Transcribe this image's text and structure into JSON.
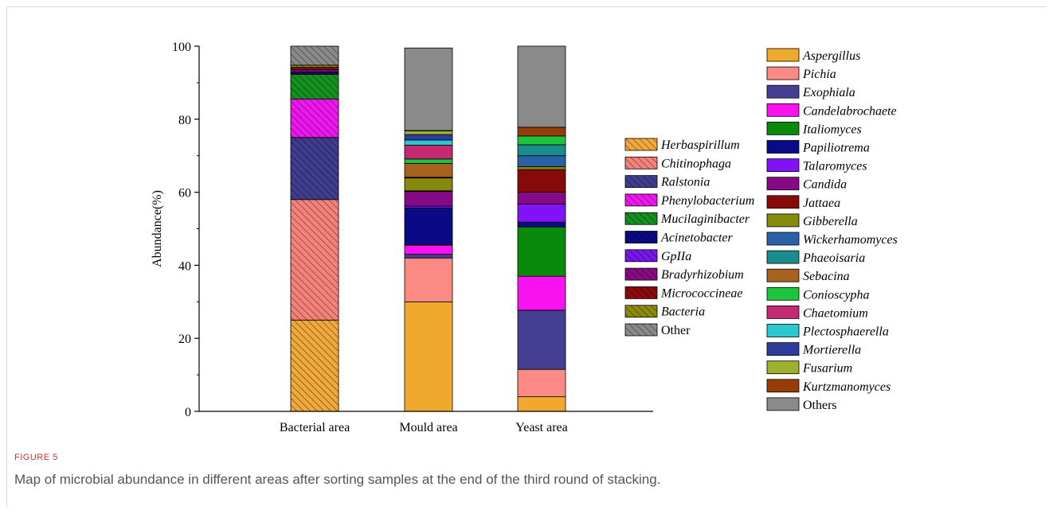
{
  "figure": {
    "label": "FIGURE 5",
    "caption": "Map of microbial abundance in different areas after sorting samples at the end of the third round of stacking."
  },
  "chart_data": {
    "type": "bar",
    "stacked": true,
    "ylabel": "Abundance(%)",
    "ylim": [
      0,
      100
    ],
    "yticks": [
      0,
      20,
      40,
      60,
      80,
      100
    ],
    "categories": [
      "Bacterial area",
      "Mould area",
      "Yeast area"
    ],
    "bars": [
      {
        "category": "Bacterial area",
        "legend_group": "bacteria",
        "segments": [
          {
            "name": "Herbaspirillum",
            "value": 25.0
          },
          {
            "name": "Chitinophaga",
            "value": 33.0
          },
          {
            "name": "Ralstonia",
            "value": 17.0
          },
          {
            "name": "Phenylobacterium",
            "value": 10.5
          },
          {
            "name": "Mucilaginibacter",
            "value": 6.8
          },
          {
            "name": "Acinetobacter",
            "value": 0.4
          },
          {
            "name": "GpIIa",
            "value": 0.3
          },
          {
            "name": "Bradyrhizobium",
            "value": 0.6
          },
          {
            "name": "Micrococcineae",
            "value": 0.6
          },
          {
            "name": "Bacteria",
            "value": 0.6
          },
          {
            "name": "Other",
            "value": 5.2
          }
        ]
      },
      {
        "category": "Mould area",
        "legend_group": "fungi",
        "segments": [
          {
            "name": "Aspergillus",
            "value": 30.0
          },
          {
            "name": "Pichia",
            "value": 12.0
          },
          {
            "name": "Exophiala",
            "value": 1.0
          },
          {
            "name": "Candelabrochaete",
            "value": 2.5
          },
          {
            "name": "Italiomyces",
            "value": 0.2
          },
          {
            "name": "Papiliotrema",
            "value": 10.0
          },
          {
            "name": "Talaromyces",
            "value": 0.5
          },
          {
            "name": "Candida",
            "value": 4.0
          },
          {
            "name": "Jattaea",
            "value": 0.2
          },
          {
            "name": "Gibberella",
            "value": 3.5
          },
          {
            "name": "Wickerhamomyces",
            "value": 0.1
          },
          {
            "name": "Phaeoisaria",
            "value": 0.1
          },
          {
            "name": "Sebacina",
            "value": 3.8
          },
          {
            "name": "Conioscypha",
            "value": 1.2
          },
          {
            "name": "Chaetomium",
            "value": 3.8
          },
          {
            "name": "Plectosphaerella",
            "value": 1.4
          },
          {
            "name": "Mortierella",
            "value": 1.5
          },
          {
            "name": "Fusarium",
            "value": 1.0
          },
          {
            "name": "Kurtzmanomyces",
            "value": 0.1
          },
          {
            "name": "Others",
            "value": 22.6
          }
        ]
      },
      {
        "category": "Yeast area",
        "legend_group": "fungi",
        "segments": [
          {
            "name": "Aspergillus",
            "value": 4.0
          },
          {
            "name": "Pichia",
            "value": 7.5
          },
          {
            "name": "Exophiala",
            "value": 16.2
          },
          {
            "name": "Candelabrochaete",
            "value": 9.3
          },
          {
            "name": "Italiomyces",
            "value": 13.5
          },
          {
            "name": "Papiliotrema",
            "value": 1.3
          },
          {
            "name": "Talaromyces",
            "value": 5.0
          },
          {
            "name": "Candida",
            "value": 3.2
          },
          {
            "name": "Jattaea",
            "value": 6.2
          },
          {
            "name": "Gibberella",
            "value": 0.8
          },
          {
            "name": "Wickerhamomyces",
            "value": 3.0
          },
          {
            "name": "Phaeoisaria",
            "value": 3.0
          },
          {
            "name": "Sebacina",
            "value": 0.0
          },
          {
            "name": "Conioscypha",
            "value": 2.4
          },
          {
            "name": "Chaetomium",
            "value": 0.0
          },
          {
            "name": "Plectosphaerella",
            "value": 0.0
          },
          {
            "name": "Mortierella",
            "value": 0.0
          },
          {
            "name": "Fusarium",
            "value": 0.0
          },
          {
            "name": "Kurtzmanomyces",
            "value": 2.4
          },
          {
            "name": "Others",
            "value": 22.2
          }
        ]
      }
    ],
    "legends": [
      {
        "group": "bacteria",
        "hatched": true,
        "items": [
          {
            "name": "Herbaspirillum",
            "color": "#F2A93B",
            "italic": true
          },
          {
            "name": "Chitinophaga",
            "color": "#F4827A",
            "italic": true
          },
          {
            "name": "Ralstonia",
            "color": "#3F3D8F",
            "italic": true
          },
          {
            "name": "Phenylobacterium",
            "color": "#F016F0",
            "italic": true
          },
          {
            "name": "Mucilaginibacter",
            "color": "#14911E",
            "italic": true
          },
          {
            "name": "Acinetobacter",
            "color": "#0A0A86",
            "italic": true
          },
          {
            "name": "GpIIa",
            "color": "#7A14F0",
            "italic": true
          },
          {
            "name": "Bradyrhizobium",
            "color": "#8A0A86",
            "italic": true
          },
          {
            "name": "Micrococcineae",
            "color": "#8E0A0A",
            "italic": true
          },
          {
            "name": "Bacteria",
            "color": "#8E8A0A",
            "italic": true
          },
          {
            "name": "Other",
            "color": "#8A8A8A",
            "italic": false
          }
        ]
      },
      {
        "group": "fungi",
        "hatched": false,
        "items": [
          {
            "name": "Aspergillus",
            "color": "#EFAA2E",
            "italic": true
          },
          {
            "name": "Pichia",
            "color": "#FB8A84",
            "italic": true
          },
          {
            "name": "Exophiala",
            "color": "#443F92",
            "italic": true
          },
          {
            "name": "Candelabrochaete",
            "color": "#F812F0",
            "italic": true
          },
          {
            "name": "Italiomyces",
            "color": "#0A8A0A",
            "italic": true
          },
          {
            "name": "Papiliotrema",
            "color": "#0A0A86",
            "italic": true
          },
          {
            "name": "Talaromyces",
            "color": "#8412F8",
            "italic": true
          },
          {
            "name": "Candida",
            "color": "#860A86",
            "italic": true
          },
          {
            "name": "Jattaea",
            "color": "#860A0A",
            "italic": true
          },
          {
            "name": "Gibberella",
            "color": "#868A0A",
            "italic": true
          },
          {
            "name": "Wickerhamomyces",
            "color": "#2A60A6",
            "italic": true
          },
          {
            "name": "Phaeoisaria",
            "color": "#1A8C8C",
            "italic": true
          },
          {
            "name": "Sebacina",
            "color": "#A6621E",
            "italic": true
          },
          {
            "name": "Conioscypha",
            "color": "#1EC43C",
            "italic": true
          },
          {
            "name": "Chaetomium",
            "color": "#C42A72",
            "italic": true
          },
          {
            "name": "Plectosphaerella",
            "color": "#2AC8D0",
            "italic": true
          },
          {
            "name": "Mortierella",
            "color": "#2E3C9C",
            "italic": true
          },
          {
            "name": "Fusarium",
            "color": "#9CB12E",
            "italic": true
          },
          {
            "name": "Kurtzmanomyces",
            "color": "#963C06",
            "italic": true
          },
          {
            "name": "Others",
            "color": "#8A8A8A",
            "italic": false
          }
        ]
      }
    ]
  }
}
